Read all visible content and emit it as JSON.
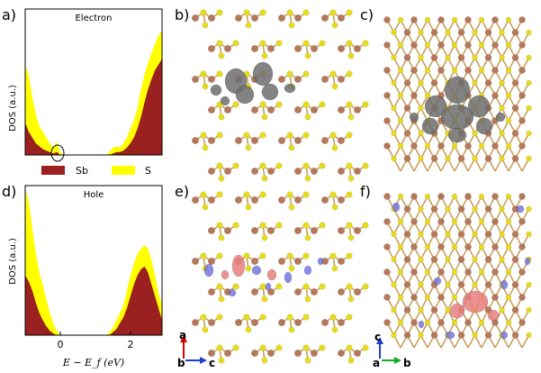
{
  "panels": {
    "a": {
      "label": "a)",
      "title": "Electron",
      "ylabel": "DOS (a.u.)"
    },
    "b": {
      "label": "b)"
    },
    "c": {
      "label": "c)"
    },
    "d": {
      "label": "d)",
      "title": "Hole",
      "ylabel": "DOS (a.u.)"
    },
    "e": {
      "label": "e)"
    },
    "f": {
      "label": "f)"
    }
  },
  "legend": {
    "sb": "Sb",
    "s": "S"
  },
  "xaxis": {
    "label": "E − E_f (eV)",
    "ticks": [
      "0",
      "2"
    ]
  },
  "axes_e": {
    "up": "a",
    "left": "b",
    "right": "c"
  },
  "axes_f": {
    "up": "c",
    "left": "a",
    "right": "b"
  },
  "colors": {
    "sb": "#9b2020",
    "s": "#ffff00",
    "sb_atom": "#b5785a",
    "s_atom": "#e6dc1e",
    "density_grey": "#6e6e6e",
    "density_red": "#e88080",
    "density_blue": "#7070e0"
  },
  "chart_data": [
    {
      "type": "area",
      "panel": "a",
      "title": "Electron",
      "ylabel": "DOS (a.u.)",
      "xlim": [
        -0.9,
        3.0
      ],
      "ylim": [
        0,
        1
      ],
      "xticks": [
        0,
        2
      ],
      "series": [
        {
          "name": "S",
          "x": [
            -0.9,
            -0.8,
            -0.7,
            -0.6,
            -0.5,
            -0.4,
            -0.3,
            -0.2,
            -0.1,
            0.0,
            0.1,
            0.2,
            0.3,
            0.4,
            0.5,
            0.6,
            0.7,
            0.8,
            0.9,
            1.0,
            1.1,
            1.2,
            1.3,
            1.4,
            1.5,
            1.6,
            1.7,
            1.8,
            1.9,
            2.0,
            2.1,
            2.2,
            2.3,
            2.4,
            2.5,
            2.6,
            2.7,
            2.8,
            2.9,
            3.0
          ],
          "values": [
            0.62,
            0.55,
            0.4,
            0.28,
            0.2,
            0.16,
            0.12,
            0.08,
            0.05,
            0.09,
            0.02,
            0.0,
            0.0,
            0.0,
            0.0,
            0.0,
            0.0,
            0.0,
            0.0,
            0.0,
            0.0,
            0.0,
            0.0,
            0.0,
            0.02,
            0.05,
            0.06,
            0.05,
            0.08,
            0.12,
            0.18,
            0.24,
            0.32,
            0.45,
            0.55,
            0.63,
            0.7,
            0.76,
            0.82,
            0.85
          ]
        },
        {
          "name": "Sb",
          "x": [
            -0.9,
            -0.8,
            -0.7,
            -0.6,
            -0.5,
            -0.4,
            -0.3,
            -0.2,
            -0.1,
            0.0,
            0.1,
            0.2,
            0.3,
            0.4,
            0.5,
            0.6,
            0.7,
            0.8,
            0.9,
            1.0,
            1.1,
            1.2,
            1.3,
            1.4,
            1.5,
            1.6,
            1.7,
            1.8,
            1.9,
            2.0,
            2.1,
            2.2,
            2.3,
            2.4,
            2.5,
            2.6,
            2.7,
            2.8,
            2.9,
            3.0
          ],
          "values": [
            0.22,
            0.16,
            0.12,
            0.08,
            0.06,
            0.04,
            0.03,
            0.02,
            0.01,
            0.02,
            0.0,
            0.0,
            0.0,
            0.0,
            0.0,
            0.0,
            0.0,
            0.0,
            0.0,
            0.0,
            0.0,
            0.0,
            0.0,
            0.0,
            0.0,
            0.01,
            0.02,
            0.02,
            0.03,
            0.05,
            0.08,
            0.12,
            0.18,
            0.26,
            0.36,
            0.45,
            0.52,
            0.58,
            0.62,
            0.66
          ]
        }
      ]
    },
    {
      "type": "area",
      "panel": "d",
      "title": "Hole",
      "ylabel": "DOS (a.u.)",
      "xlabel": "E − E_f (eV)",
      "xlim": [
        -0.9,
        3.0
      ],
      "ylim": [
        0,
        1
      ],
      "xticks": [
        0,
        2
      ],
      "series": [
        {
          "name": "S",
          "x": [
            -0.9,
            -0.8,
            -0.7,
            -0.6,
            -0.5,
            -0.4,
            -0.3,
            -0.2,
            -0.1,
            0.0,
            0.1,
            0.2,
            0.3,
            0.4,
            0.5,
            0.6,
            0.7,
            0.8,
            0.9,
            1.0,
            1.1,
            1.2,
            1.3,
            1.4,
            1.5,
            1.6,
            1.7,
            1.8,
            1.9,
            2.0,
            2.1,
            2.2,
            2.3,
            2.4,
            2.5,
            2.6,
            2.7,
            2.8,
            2.9,
            3.0
          ],
          "values": [
            0.98,
            0.9,
            0.72,
            0.55,
            0.42,
            0.34,
            0.24,
            0.15,
            0.08,
            0.03,
            0.0,
            0.0,
            0.0,
            0.0,
            0.0,
            0.0,
            0.0,
            0.0,
            0.0,
            0.0,
            0.0,
            0.0,
            0.0,
            0.0,
            0.02,
            0.05,
            0.1,
            0.15,
            0.2,
            0.3,
            0.4,
            0.48,
            0.54,
            0.58,
            0.6,
            0.58,
            0.5,
            0.4,
            0.28,
            0.2
          ]
        },
        {
          "name": "Sb",
          "x": [
            -0.9,
            -0.8,
            -0.7,
            -0.6,
            -0.5,
            -0.4,
            -0.3,
            -0.2,
            -0.1,
            0.0,
            0.1,
            0.2,
            0.3,
            0.4,
            0.5,
            0.6,
            0.7,
            0.8,
            0.9,
            1.0,
            1.1,
            1.2,
            1.3,
            1.4,
            1.5,
            1.6,
            1.7,
            1.8,
            1.9,
            2.0,
            2.1,
            2.2,
            2.3,
            2.4,
            2.5,
            2.6,
            2.7,
            2.8,
            2.9,
            3.0
          ],
          "values": [
            0.4,
            0.36,
            0.3,
            0.22,
            0.15,
            0.1,
            0.06,
            0.03,
            0.01,
            0.0,
            0.0,
            0.0,
            0.0,
            0.0,
            0.0,
            0.0,
            0.0,
            0.0,
            0.0,
            0.0,
            0.0,
            0.0,
            0.0,
            0.0,
            0.0,
            0.02,
            0.04,
            0.08,
            0.12,
            0.18,
            0.26,
            0.34,
            0.4,
            0.44,
            0.46,
            0.42,
            0.34,
            0.26,
            0.18,
            0.1
          ]
        }
      ]
    }
  ]
}
